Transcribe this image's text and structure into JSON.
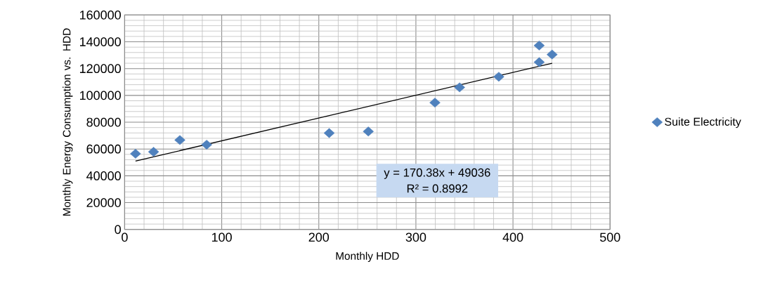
{
  "chart_data": {
    "type": "scatter",
    "xlabel": "Monthly HDD",
    "ylabel": "Monthly Energy Consumption vs. HDD",
    "xlim": [
      0,
      500
    ],
    "xticks": [
      0,
      100,
      200,
      300,
      400,
      500
    ],
    "ylim": [
      0,
      160000
    ],
    "yticks": [
      0,
      20000,
      40000,
      60000,
      80000,
      100000,
      120000,
      140000,
      160000
    ],
    "grid": true,
    "legend": "right",
    "annotations": [
      "y = 170.38x + 49036",
      "R² = 0.8992"
    ],
    "series": [
      {
        "name": "Suite Electricity",
        "marker": "diamond",
        "color": "#4f81bd",
        "x": [
          11.2,
          29.8,
          56.9,
          84.5,
          210.7,
          251,
          319.6,
          345,
          385.4,
          427,
          427,
          440.3
        ],
        "values": [
          56500,
          57900,
          66700,
          63200,
          71900,
          73100,
          94600,
          106000,
          113900,
          137200,
          124800,
          130500
        ]
      },
      {
        "type": "line",
        "marker": "none",
        "color": "#000000",
        "x": [
          11.2,
          440.3
        ],
        "values": [
          51000,
          124000
        ]
      }
    ]
  }
}
